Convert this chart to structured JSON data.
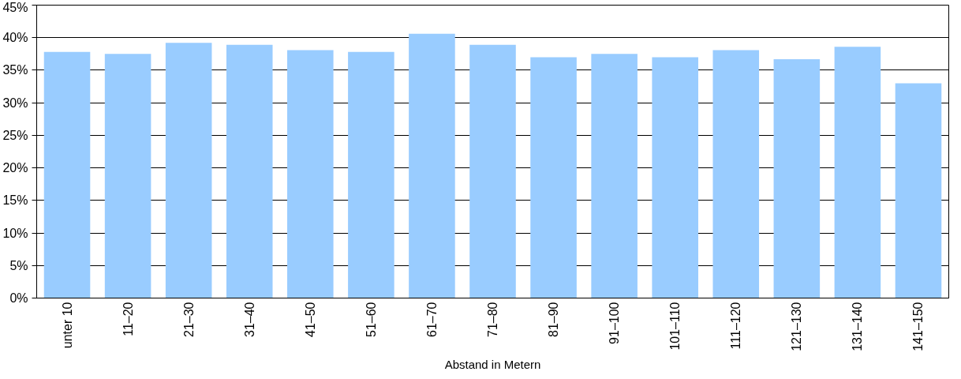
{
  "chart_data": {
    "type": "bar",
    "xlabel": "Abstand in Metern",
    "categories": [
      "unter 10",
      "11–20",
      "21–30",
      "31–40",
      "41–50",
      "51–60",
      "61–70",
      "71–80",
      "81–90",
      "91–100",
      "101–110",
      "111–120",
      "121–130",
      "131–140",
      "141–150"
    ],
    "values": [
      37.8,
      37.5,
      39.2,
      38.9,
      38.1,
      37.8,
      40.6,
      38.9,
      37.0,
      37.5,
      37.0,
      38.1,
      36.7,
      38.6,
      33.0
    ],
    "color": "#99ccff",
    "ylim": [
      0,
      45
    ],
    "yticks": [
      {
        "value": 0,
        "label": "0%"
      },
      {
        "value": 5,
        "label": "5%"
      },
      {
        "value": 10,
        "label": "10%"
      },
      {
        "value": 15,
        "label": "15%"
      },
      {
        "value": 20,
        "label": "20%"
      },
      {
        "value": 25,
        "label": "25%"
      },
      {
        "value": 30,
        "label": "30%"
      },
      {
        "value": 35,
        "label": "35%"
      },
      {
        "value": 40,
        "label": "40%"
      },
      {
        "value": 45,
        "label": "45%"
      }
    ],
    "grid": "y"
  }
}
